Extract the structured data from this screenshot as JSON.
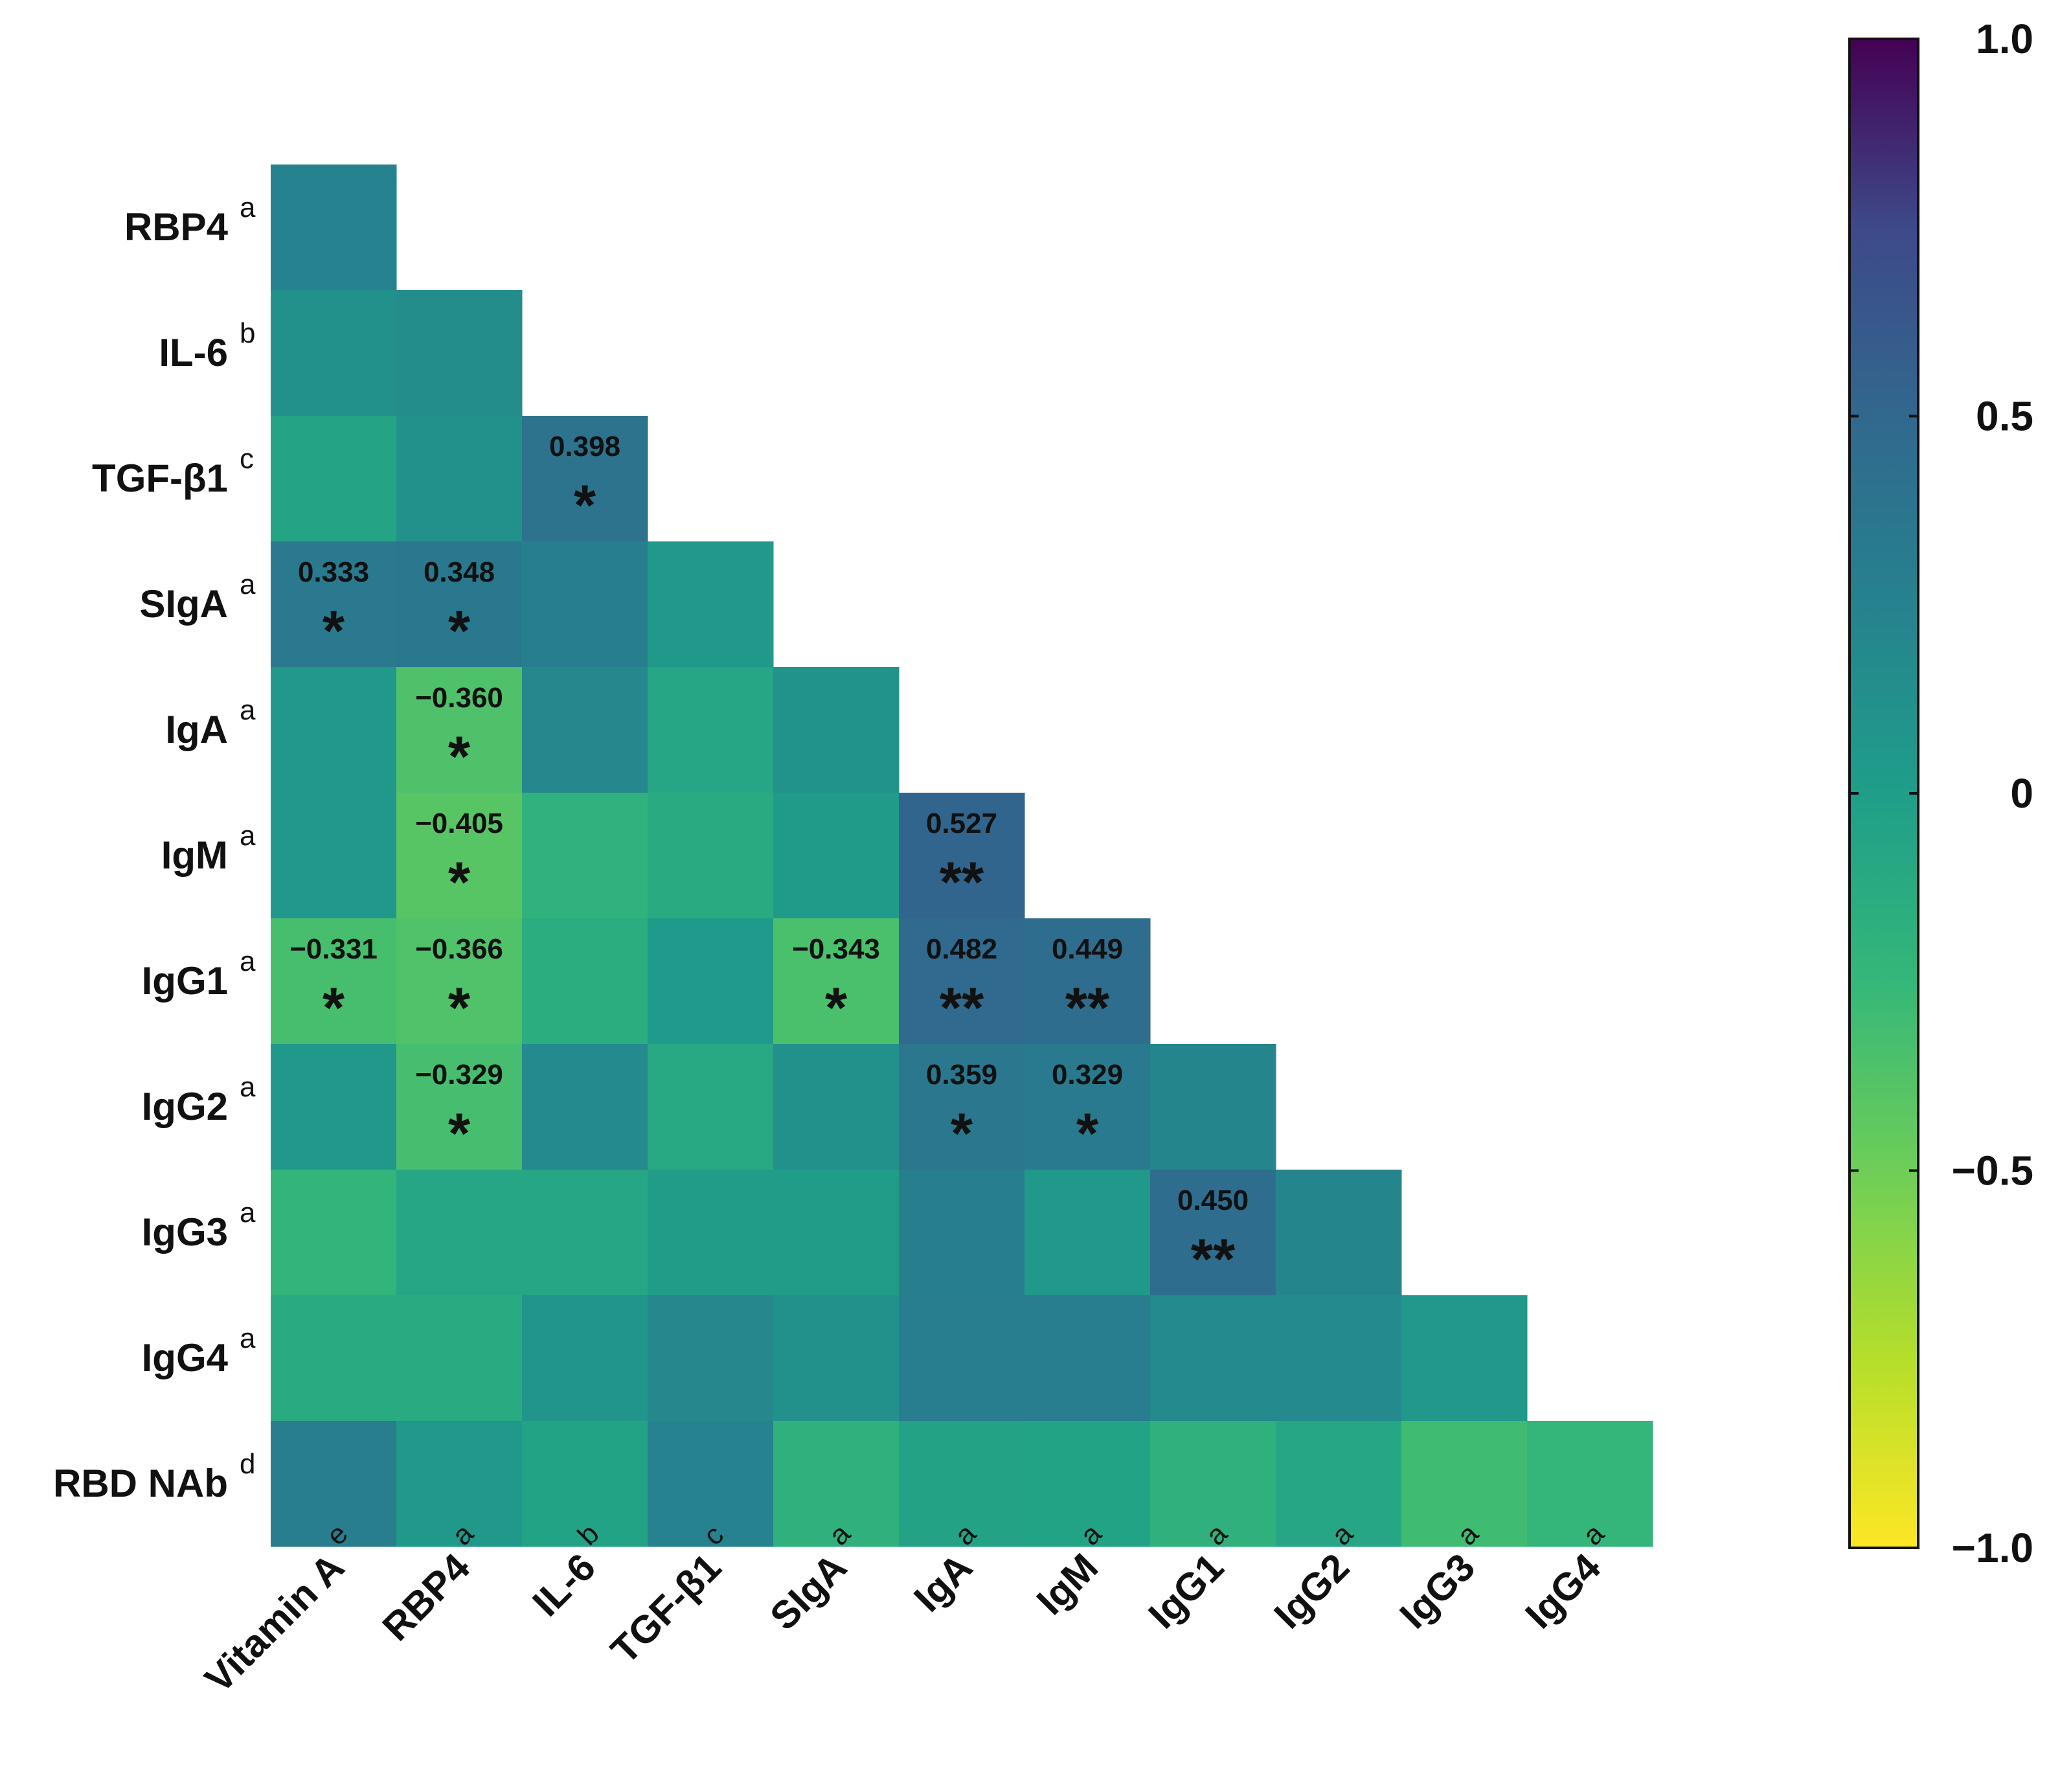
{
  "chart_data": {
    "type": "heatmap",
    "rows": [
      {
        "name": "RBP4",
        "sup": "a"
      },
      {
        "name": "IL-6",
        "sup": "b"
      },
      {
        "name": "TGF-β1",
        "sup": "c"
      },
      {
        "name": "SIgA",
        "sup": "a"
      },
      {
        "name": "IgA",
        "sup": "a"
      },
      {
        "name": "IgM",
        "sup": "a"
      },
      {
        "name": "IgG1",
        "sup": "a"
      },
      {
        "name": "IgG2",
        "sup": "a"
      },
      {
        "name": "IgG3",
        "sup": "a"
      },
      {
        "name": "IgG4",
        "sup": "a"
      },
      {
        "name": "RBD NAb",
        "sup": "d"
      }
    ],
    "columns": [
      {
        "name": "Vitamin A",
        "sup": "e"
      },
      {
        "name": "RBP4",
        "sup": "a"
      },
      {
        "name": "IL-6",
        "sup": "b"
      },
      {
        "name": "TGF-β1",
        "sup": "c"
      },
      {
        "name": "SIgA",
        "sup": "a"
      },
      {
        "name": "IgA",
        "sup": "a"
      },
      {
        "name": "IgM",
        "sup": "a"
      },
      {
        "name": "IgG1",
        "sup": "a"
      },
      {
        "name": "IgG2",
        "sup": "a"
      },
      {
        "name": "IgG3",
        "sup": "a"
      },
      {
        "name": "IgG4",
        "sup": "a"
      }
    ],
    "values": [
      [
        0.25
      ],
      [
        0.12,
        0.15
      ],
      [
        -0.06,
        0.12,
        0.398
      ],
      [
        0.333,
        0.348,
        0.28,
        0.05
      ],
      [
        0.05,
        -0.36,
        0.2,
        -0.08,
        0.1
      ],
      [
        0.05,
        -0.405,
        -0.2,
        -0.12,
        0.03,
        0.527
      ],
      [
        -0.331,
        -0.366,
        -0.15,
        0.04,
        -0.343,
        0.482,
        0.449
      ],
      [
        0.05,
        -0.329,
        0.18,
        -0.1,
        0.12,
        0.359,
        0.329,
        0.22
      ],
      [
        -0.22,
        -0.08,
        -0.08,
        0.02,
        0.02,
        0.28,
        0.05,
        0.45,
        0.22
      ],
      [
        -0.12,
        -0.12,
        0.08,
        0.2,
        0.12,
        0.3,
        0.3,
        0.18,
        0.18,
        0.05
      ],
      [
        0.3,
        0.05,
        -0.05,
        0.25,
        -0.18,
        -0.04,
        -0.05,
        -0.18,
        -0.08,
        -0.3,
        -0.24
      ]
    ],
    "annotations": [
      {
        "row": 2,
        "col": 2,
        "label": "0.398",
        "sig": "*"
      },
      {
        "row": 3,
        "col": 0,
        "label": "0.333",
        "sig": "*"
      },
      {
        "row": 3,
        "col": 1,
        "label": "0.348",
        "sig": "*"
      },
      {
        "row": 4,
        "col": 1,
        "label": "−0.360",
        "sig": "*"
      },
      {
        "row": 5,
        "col": 1,
        "label": "−0.405",
        "sig": "*"
      },
      {
        "row": 5,
        "col": 5,
        "label": "0.527",
        "sig": "**"
      },
      {
        "row": 6,
        "col": 0,
        "label": "−0.331",
        "sig": "*"
      },
      {
        "row": 6,
        "col": 1,
        "label": "−0.366",
        "sig": "*"
      },
      {
        "row": 6,
        "col": 4,
        "label": "−0.343",
        "sig": "*"
      },
      {
        "row": 6,
        "col": 5,
        "label": "0.482",
        "sig": "**"
      },
      {
        "row": 6,
        "col": 6,
        "label": "0.449",
        "sig": "**"
      },
      {
        "row": 7,
        "col": 1,
        "label": "−0.329",
        "sig": "*"
      },
      {
        "row": 7,
        "col": 5,
        "label": "0.359",
        "sig": "*"
      },
      {
        "row": 7,
        "col": 6,
        "label": "0.329",
        "sig": "*"
      },
      {
        "row": 8,
        "col": 7,
        "label": "0.450",
        "sig": "**"
      }
    ],
    "colorbar": {
      "range": [
        -1.0,
        1.0
      ],
      "ticks": [
        {
          "value": 1.0,
          "label": "1.0"
        },
        {
          "value": 0.5,
          "label": "0.5"
        },
        {
          "value": 0,
          "label": "0"
        },
        {
          "value": -0.5,
          "label": "−0.5"
        },
        {
          "value": -1.0,
          "label": "−1.0"
        }
      ],
      "colormap": "viridis"
    },
    "title": "",
    "xlabel": "",
    "ylabel": ""
  }
}
